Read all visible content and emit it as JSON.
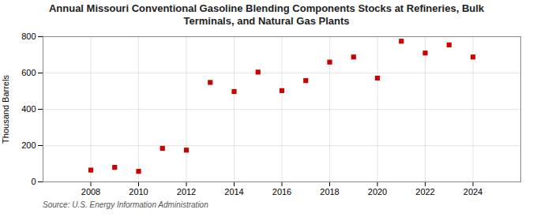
{
  "chart_data": {
    "type": "scatter",
    "title": "Annual Missouri Conventional Gasoline Blending Components Stocks at Refineries, Bulk\nTerminals, and Natural Gas Plants",
    "ylabel": "Thousand Barrels",
    "annotation": "Source: U.S. Energy Information Administration",
    "x": [
      2008,
      2009,
      2010,
      2011,
      2012,
      2013,
      2014,
      2015,
      2016,
      2017,
      2018,
      2019,
      2020,
      2021,
      2022,
      2023,
      2024
    ],
    "values": [
      65,
      80,
      58,
      185,
      175,
      548,
      498,
      605,
      503,
      558,
      660,
      688,
      572,
      775,
      710,
      755,
      688
    ],
    "color": "#cc0000",
    "marker": "square",
    "xlim": [
      2006,
      2026
    ],
    "xticks": [
      2008,
      2010,
      2012,
      2014,
      2016,
      2018,
      2020,
      2022,
      2024
    ],
    "ylim": [
      0,
      800
    ],
    "yticks": [
      0,
      200,
      400,
      600,
      800
    ],
    "grid": true
  }
}
